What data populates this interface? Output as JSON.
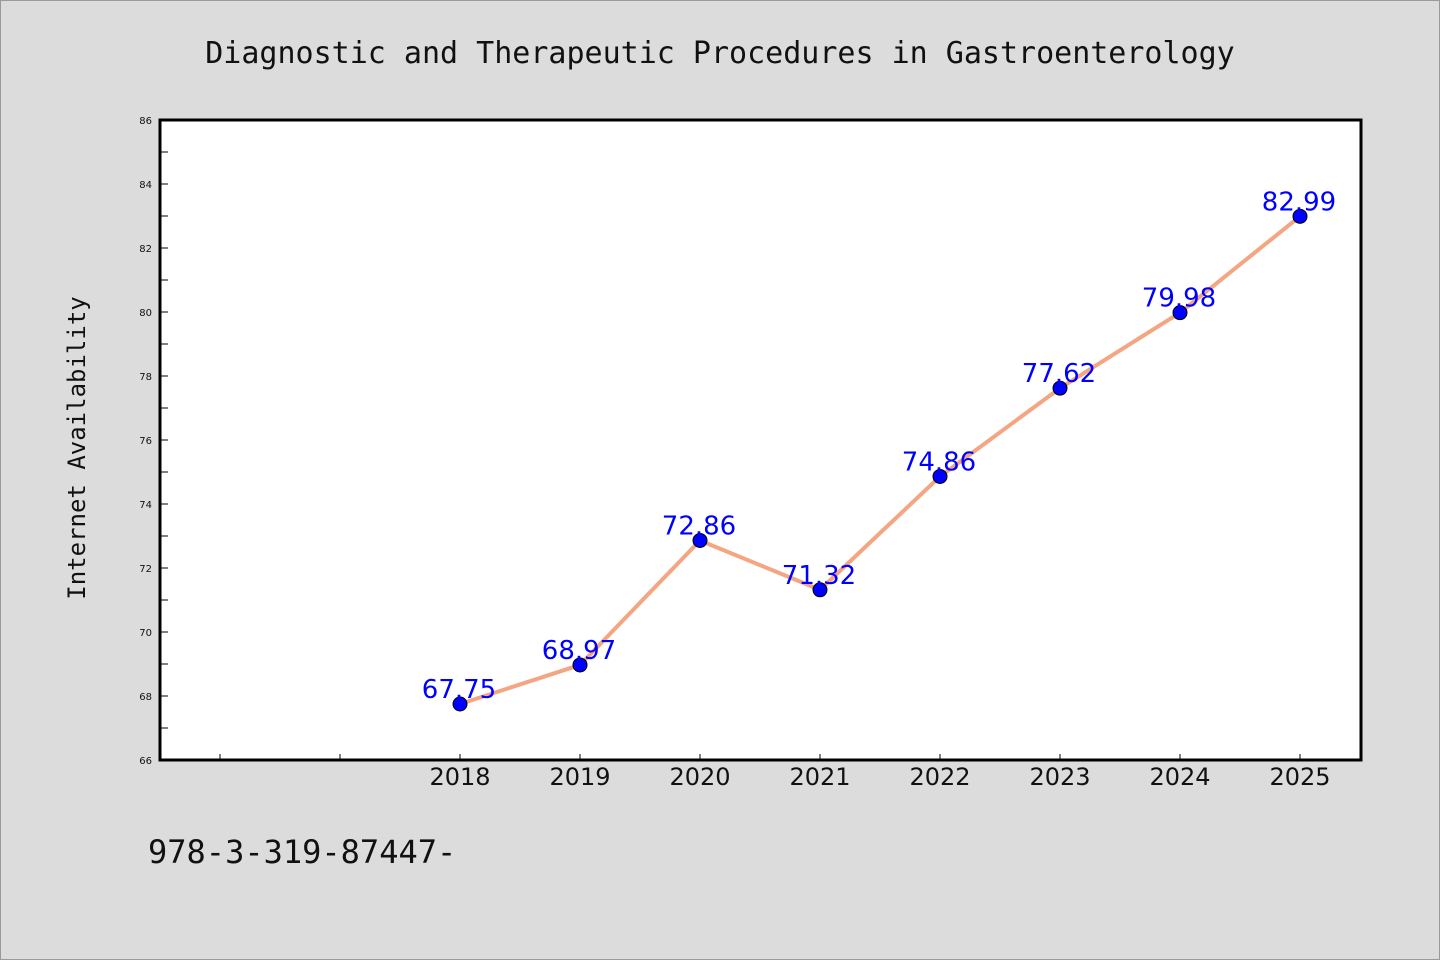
{
  "chart_data": {
    "type": "line",
    "title": "Diagnostic and Therapeutic Procedures in Gastroenterology",
    "xlabel": "",
    "ylabel": "Internet Availability",
    "categories": [
      "2018",
      "2019",
      "2020",
      "2021",
      "2022",
      "2023",
      "2024",
      "2025"
    ],
    "series": [
      {
        "values": [
          67.75,
          68.97,
          72.86,
          71.32,
          74.86,
          77.62,
          79.98,
          82.99
        ]
      }
    ],
    "data_labels": [
      "67.75",
      "68.97",
      "72.86",
      "71.32",
      "74.86",
      "77.62",
      "79.98",
      "82.99"
    ],
    "ylim": [
      66,
      86
    ],
    "yticks": [
      "66",
      "68",
      "70",
      "72",
      "74",
      "76",
      "78",
      "80",
      "82",
      "84",
      "86"
    ],
    "grid": false,
    "line_color": "#f4a582",
    "marker_color": "#0000ff",
    "label_color": "#0000ff"
  },
  "footer": "978-3-319-87447-"
}
